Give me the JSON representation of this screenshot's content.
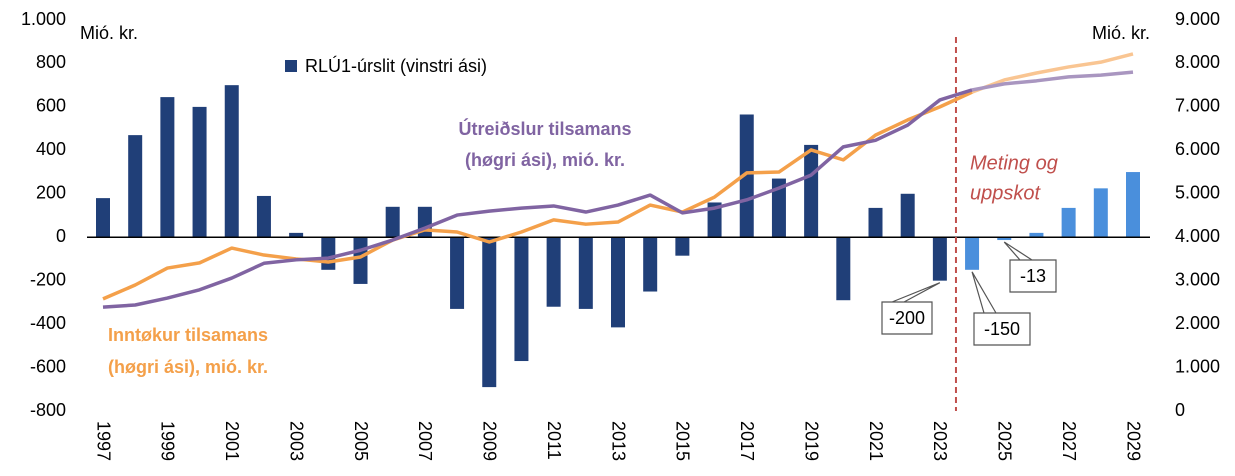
{
  "chart_data": {
    "type": "bar_line",
    "left_unit": "Mió. kr.",
    "right_unit": "Mió. kr.",
    "categories": [
      "1997",
      null,
      "1999",
      null,
      "2001",
      null,
      "2003",
      null,
      "2005",
      null,
      "2007",
      null,
      "2009",
      null,
      "2011",
      null,
      "2013",
      null,
      "2015",
      null,
      "2017",
      null,
      "2019",
      null,
      "2021",
      null,
      "2023",
      null,
      "2025",
      null,
      "2027",
      null,
      "2029"
    ],
    "series": [
      {
        "name": "RLÚ1-úrslit (vinstri ási)",
        "color": "#203f78",
        "values": [
          180,
          470,
          645,
          600,
          700,
          190,
          20,
          -150,
          -215,
          140,
          140,
          -330,
          -690,
          -570,
          -320,
          -330,
          -415,
          -250,
          -85,
          160,
          565,
          270,
          425,
          -290,
          135,
          200,
          -200,
          -150,
          -13,
          20,
          135,
          225,
          300
        ],
        "colors": [
          "#203f78",
          "#203f78",
          "#203f78",
          "#203f78",
          "#203f78",
          "#203f78",
          "#203f78",
          "#203f78",
          "#203f78",
          "#203f78",
          "#203f78",
          "#203f78",
          "#203f78",
          "#203f78",
          "#203f78",
          "#203f78",
          "#203f78",
          "#203f78",
          "#203f78",
          "#203f78",
          "#203f78",
          "#203f78",
          "#203f78",
          "#203f78",
          "#203f78",
          "#203f78",
          "#203f78",
          "#4a8fdc",
          "#4a8fdc",
          "#4a8fdc",
          "#4a8fdc",
          "#4a8fdc",
          "#4a8fdc"
        ]
      },
      {
        "name": "Inntøkur tilsamans",
        "axis": "y2",
        "color": "#f4a04a",
        "values": [
          2580,
          2900,
          3290,
          3410,
          3750,
          3590,
          3500,
          3430,
          3545,
          3935,
          4170,
          4120,
          3890,
          4120,
          4400,
          4300,
          4350,
          4740,
          4580,
          4925,
          5480,
          5500,
          6010,
          5780,
          6350,
          6700,
          7000,
          7340,
          7620,
          7780,
          7920,
          8030,
          8220
        ],
        "colors": [
          "#f4a04a",
          "#f4a04a",
          "#f4a04a",
          "#f4a04a",
          "#f4a04a",
          "#f4a04a",
          "#f4a04a",
          "#f4a04a",
          "#f4a04a",
          "#f4a04a",
          "#f4a04a",
          "#f4a04a",
          "#f4a04a",
          "#f4a04a",
          "#f4a04a",
          "#f4a04a",
          "#f4a04a",
          "#f4a04a",
          "#f4a04a",
          "#f4a04a",
          "#f4a04a",
          "#f4a04a",
          "#f4a04a",
          "#f4a04a",
          "#f4a04a",
          "#f4a04a",
          "#f4a04a",
          "#f9c592",
          "#f9c592",
          "#f9c592",
          "#f9c592",
          "#f9c592",
          "#f9c592"
        ]
      },
      {
        "name": "Útreiðslur tilsamans",
        "axis": "y2",
        "color": "#8064a2",
        "values": [
          2390,
          2440,
          2600,
          2790,
          3060,
          3400,
          3480,
          3520,
          3700,
          3935,
          4210,
          4510,
          4600,
          4670,
          4720,
          4580,
          4740,
          4970,
          4560,
          4670,
          4860,
          5130,
          5430,
          6080,
          6230,
          6580,
          7160,
          7390,
          7530,
          7600,
          7690,
          7730,
          7800
        ],
        "colors": [
          "#8064a2",
          "#8064a2",
          "#8064a2",
          "#8064a2",
          "#8064a2",
          "#8064a2",
          "#8064a2",
          "#8064a2",
          "#8064a2",
          "#8064a2",
          "#8064a2",
          "#8064a2",
          "#8064a2",
          "#8064a2",
          "#8064a2",
          "#8064a2",
          "#8064a2",
          "#8064a2",
          "#8064a2",
          "#8064a2",
          "#8064a2",
          "#8064a2",
          "#8064a2",
          "#8064a2",
          "#8064a2",
          "#8064a2",
          "#8064a2",
          "#a996c0",
          "#a996c0",
          "#a996c0",
          "#a996c0",
          "#a996c0",
          "#a996c0"
        ]
      }
    ],
    "annotations": {
      "outlays": [
        "Útreiðslur tilsamans",
        "(høgri ási), mió. kr."
      ],
      "revenue": [
        "Inntøkur tilsamans",
        "(høgri ási), mió. kr."
      ],
      "forecast": [
        "Meting og",
        "uppskot"
      ]
    },
    "ylim": [
      -800,
      1000
    ],
    "yticks": [
      {
        "value": 1000,
        "label": "1.000"
      },
      800,
      600,
      400,
      200,
      0,
      -200,
      -400,
      -600,
      -800
    ],
    "y2lim": [
      0,
      9000
    ],
    "y2ticks": [
      {
        "value": 9000,
        "label": "9.000"
      },
      {
        "value": 8000,
        "label": "8.000"
      },
      {
        "value": 7000,
        "label": "7.000"
      },
      {
        "value": 6000,
        "label": "6.000"
      },
      {
        "value": 5000,
        "label": "5.000"
      },
      {
        "value": 4000,
        "label": "4.000"
      },
      {
        "value": 3000,
        "label": "3.000"
      },
      {
        "value": 2000,
        "label": "2.000"
      },
      {
        "value": 1000,
        "label": "1.000"
      },
      0
    ],
    "grid": false
  }
}
